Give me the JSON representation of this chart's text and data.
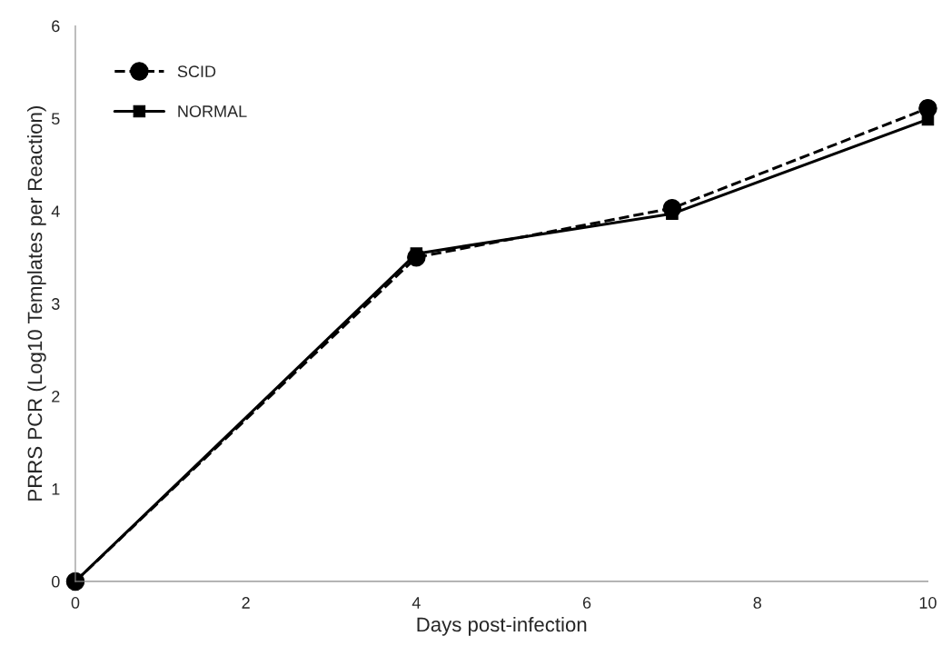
{
  "chart_data": {
    "type": "line",
    "xlabel": "Days post-infection",
    "ylabel": "PRRS PCR (Log10 Templates per Reaction)",
    "x": [
      0,
      4,
      7,
      10
    ],
    "series": [
      {
        "name": "SCID",
        "color": "#000000",
        "values": [
          0,
          3.5,
          4.03,
          5.11
        ],
        "marker": "circle",
        "line_style": "dashed"
      },
      {
        "name": "NORMAL",
        "color": "#000000",
        "values": [
          0,
          3.54,
          3.97,
          4.99
        ],
        "marker": "square",
        "line_style": "solid"
      }
    ],
    "xlim": [
      0,
      10
    ],
    "xticks": [
      0,
      2,
      4,
      6,
      8,
      10
    ],
    "ylim": [
      0,
      6
    ],
    "yticks": [
      0,
      1,
      2,
      3,
      4,
      5,
      6
    ],
    "grid": false,
    "legend": "top left"
  }
}
